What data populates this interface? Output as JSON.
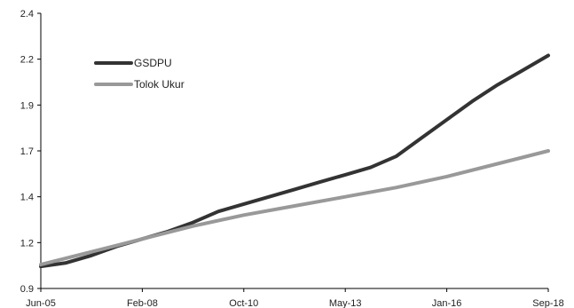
{
  "chart_data": {
    "type": "line",
    "x_categories": [
      "Jun-05",
      "Feb-08",
      "Oct-10",
      "May-13",
      "Jan-16",
      "Sep-18"
    ],
    "y_ticks": [
      "0.9",
      "1.2",
      "1.4",
      "1.7",
      "1.9",
      "2.2",
      "2.4"
    ],
    "ylim": [
      0.9,
      2.4
    ],
    "grid": false,
    "legend_position": "top-left",
    "series": [
      {
        "name": "GSDPU",
        "color": "#333333",
        "points": [
          [
            0,
            1.02
          ],
          [
            0.25,
            1.04
          ],
          [
            0.5,
            1.08
          ],
          [
            0.75,
            1.13
          ],
          [
            1,
            1.17
          ],
          [
            1.25,
            1.21
          ],
          [
            1.5,
            1.26
          ],
          [
            1.75,
            1.32
          ],
          [
            2,
            1.36
          ],
          [
            2.25,
            1.4
          ],
          [
            2.5,
            1.44
          ],
          [
            2.75,
            1.48
          ],
          [
            3,
            1.52
          ],
          [
            3.25,
            1.56
          ],
          [
            3.5,
            1.62
          ],
          [
            3.75,
            1.72
          ],
          [
            4,
            1.82
          ],
          [
            4.25,
            1.92
          ],
          [
            4.5,
            2.01
          ],
          [
            4.75,
            2.09
          ],
          [
            5,
            2.17
          ]
        ]
      },
      {
        "name": "Tolok Ukur",
        "color": "#999999",
        "points": [
          [
            0,
            1.03
          ],
          [
            0.5,
            1.1
          ],
          [
            1,
            1.17
          ],
          [
            1.5,
            1.24
          ],
          [
            2,
            1.3
          ],
          [
            2.5,
            1.35
          ],
          [
            3,
            1.4
          ],
          [
            3.5,
            1.45
          ],
          [
            4,
            1.51
          ],
          [
            4.5,
            1.58
          ],
          [
            5,
            1.65
          ]
        ]
      }
    ]
  }
}
